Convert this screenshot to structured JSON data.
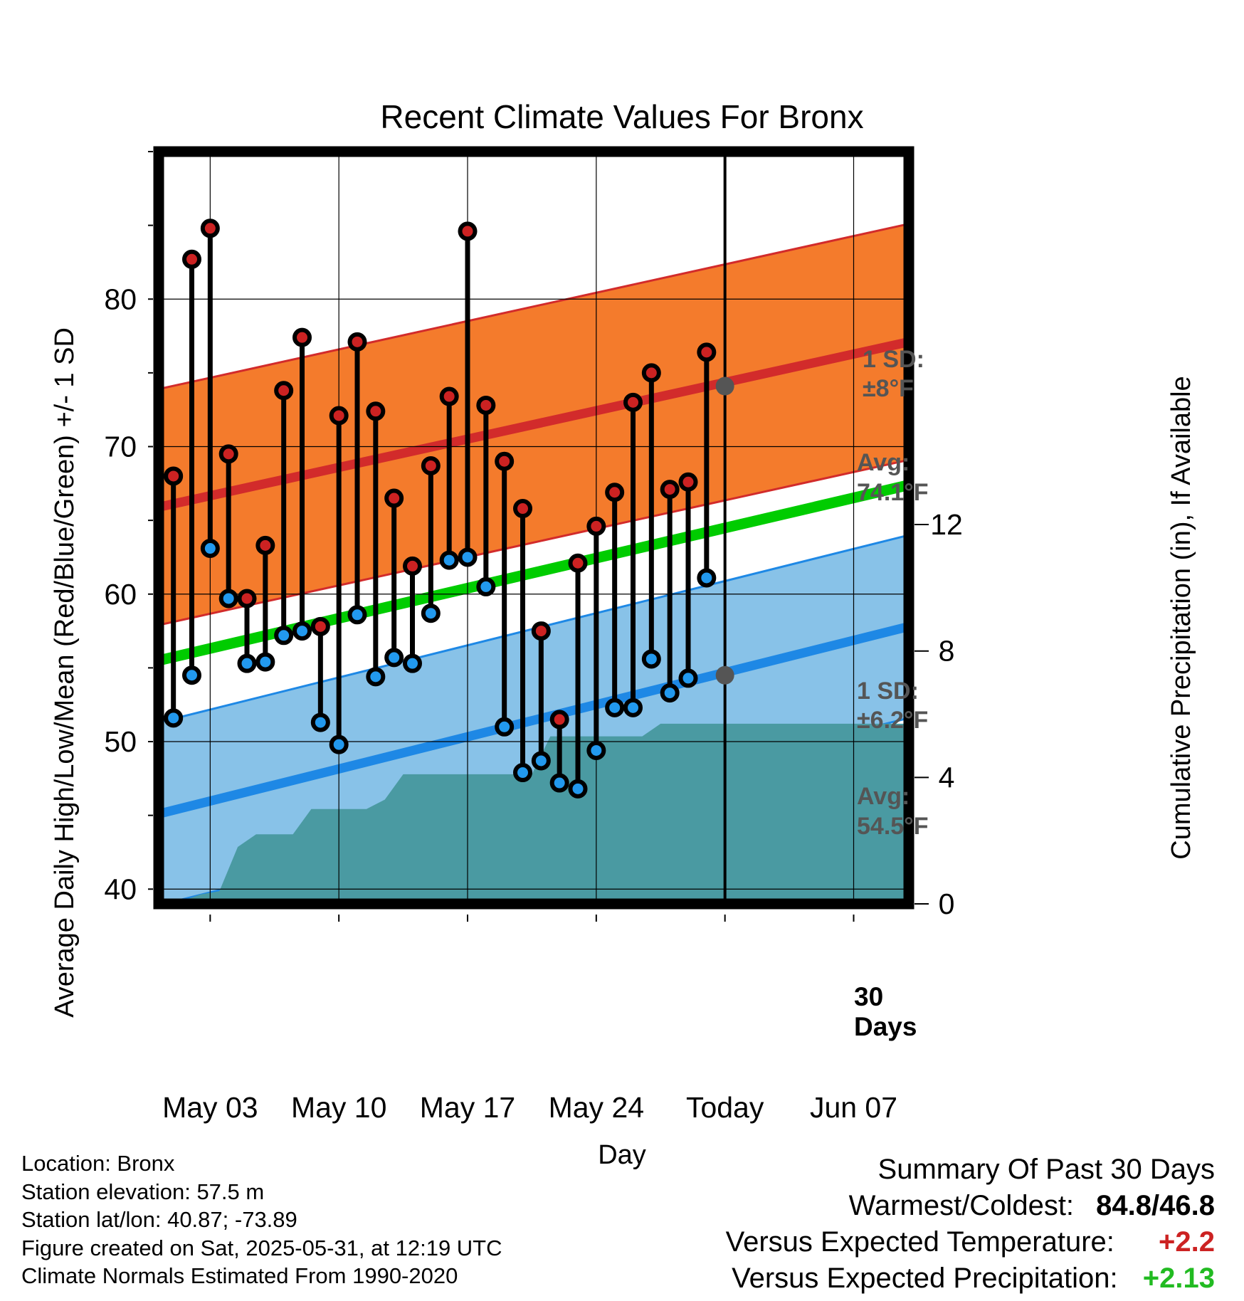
{
  "chart_data": {
    "type": "line",
    "title": "Recent Climate Values For Bronx",
    "xlabel": "Day",
    "ylabel": "Average Daily High/Low/Mean (Red/Blue/Green) +/- 1 SD",
    "y2label": "Cumulative Precipitation (in), If Available",
    "x_tick_labels": [
      "May 03",
      "May 10",
      "May 17",
      "May 24",
      "Today",
      "Jun 07"
    ],
    "x_tick_days": [
      3,
      10,
      17,
      24,
      31,
      38
    ],
    "xlim": [
      0.2,
      41
    ],
    "ylim": [
      39,
      90
    ],
    "y_ticks": [
      40,
      50,
      60,
      70,
      80
    ],
    "y2lim": [
      0,
      23.8
    ],
    "y2_ticks": [
      0,
      4,
      8,
      12
    ],
    "grid": true,
    "days": [
      1,
      2,
      3,
      4,
      5,
      6,
      7,
      8,
      9,
      10,
      11,
      12,
      13,
      14,
      15,
      16,
      17,
      18,
      19,
      20,
      21,
      22,
      23,
      24,
      25,
      26,
      27,
      28,
      29,
      30
    ],
    "series": [
      {
        "name": "High",
        "color": "#cc2222",
        "values": [
          68.0,
          82.7,
          84.8,
          69.5,
          59.7,
          63.3,
          73.8,
          77.4,
          57.8,
          72.1,
          77.1,
          72.4,
          66.5,
          61.9,
          68.7,
          73.4,
          84.6,
          72.8,
          69.0,
          65.8,
          57.5,
          51.5,
          62.1,
          64.6,
          66.9,
          73.0,
          75.0,
          67.1,
          67.6,
          76.4
        ]
      },
      {
        "name": "Low",
        "color": "#2299ee",
        "values": [
          51.6,
          54.5,
          63.1,
          59.7,
          55.3,
          55.4,
          57.2,
          57.5,
          51.3,
          49.8,
          58.6,
          54.4,
          55.7,
          55.3,
          58.7,
          62.3,
          62.5,
          60.5,
          51.0,
          47.9,
          48.7,
          47.2,
          46.8,
          49.4,
          52.3,
          52.3,
          55.6,
          53.3,
          54.3,
          61.1
        ]
      },
      {
        "name": "Mean",
        "color": "#00cc00",
        "normal_start": 55.5,
        "normal_end": 67.4
      }
    ],
    "normal_high": {
      "start": 65.9,
      "end": 77.1,
      "sd": 8.0,
      "color": "#f47b2c"
    },
    "normal_low": {
      "start": 45.1,
      "end": 57.8,
      "sd": 6.2,
      "color": "#88c2e8"
    },
    "precip_cumulative": {
      "color": "#4a9aa2",
      "values": [
        0.05,
        0.1,
        0.3,
        0.4,
        1.8,
        2.2,
        2.2,
        2.2,
        3.0,
        3.0,
        3.0,
        3.0,
        3.3,
        4.1,
        4.1,
        4.1,
        4.1,
        4.1,
        4.1,
        4.1,
        4.1,
        5.3,
        5.3,
        5.3,
        5.3,
        5.3,
        5.3,
        5.7,
        5.7,
        5.7,
        5.7
      ]
    },
    "annotations": {
      "high_sd": "1 SD:",
      "high_sd_val": "±8°F",
      "high_avg": "Avg:",
      "high_avg_val": "74.1°F",
      "low_sd": "1 SD:",
      "low_sd_val": "±6.2°F",
      "low_avg": "Avg:",
      "low_avg_val": "54.5°F",
      "days_num": "30",
      "days_word": "Days"
    },
    "today_high_avg": 74.1,
    "today_low_avg": 54.5,
    "today_day": 31
  },
  "footer": {
    "location": "Location: Bronx",
    "elevation": "Station elevation: 57.5 m",
    "latlon": "Station lat/lon: 40.87; -73.89",
    "created": "Figure created on Sat, 2025-05-31, at 12:19 UTC",
    "normals": "Climate Normals Estimated From 1990-2020"
  },
  "summary": {
    "heading": "Summary Of Past 30 Days",
    "warm_cold_label": "Warmest/Coldest:",
    "warm_cold_value": "84.8/46.8",
    "temp_label": "Versus Expected Temperature:",
    "temp_value": "+2.2",
    "temp_color": "#cc2222",
    "precip_label": "Versus Expected Precipitation:",
    "precip_value": "+2.13",
    "precip_color": "#22bb22"
  }
}
